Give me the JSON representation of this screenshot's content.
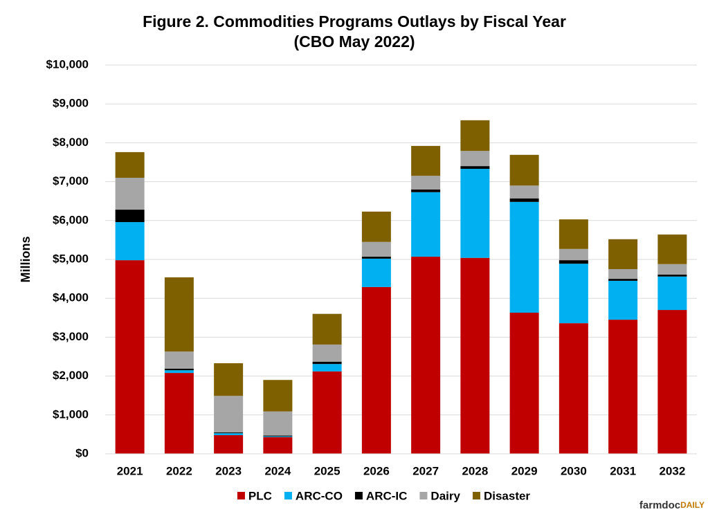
{
  "chart_data": {
    "type": "stacked_bar",
    "title": "Figure 2. Commodities Programs Outlays by Fiscal Year",
    "subtitle": "(CBO May 2022)",
    "y_label": "Millions",
    "categories": [
      "2021",
      "2022",
      "2023",
      "2024",
      "2025",
      "2026",
      "2027",
      "2028",
      "2029",
      "2030",
      "2031",
      "2032"
    ],
    "series": [
      {
        "name": "PLC",
        "color": "#c00000",
        "values": [
          4980,
          2080,
          480,
          430,
          2120,
          4290,
          5070,
          5040,
          3630,
          3360,
          3450,
          3700
        ]
      },
      {
        "name": "ARC-CO",
        "color": "#00b0f0",
        "values": [
          980,
          70,
          50,
          20,
          190,
          730,
          1660,
          2290,
          2850,
          1530,
          1000,
          860
        ]
      },
      {
        "name": "ARC-IC",
        "color": "#000000",
        "values": [
          320,
          40,
          20,
          20,
          60,
          50,
          70,
          70,
          90,
          90,
          50,
          50
        ]
      },
      {
        "name": "Dairy",
        "color": "#a6a6a6",
        "values": [
          820,
          440,
          940,
          620,
          440,
          380,
          350,
          390,
          330,
          290,
          250,
          270
        ]
      },
      {
        "name": "Disaster",
        "color": "#7f6000",
        "values": [
          660,
          1910,
          840,
          810,
          790,
          780,
          770,
          790,
          790,
          760,
          770,
          760
        ]
      }
    ],
    "ylim": [
      0,
      10000
    ],
    "yticks": [
      {
        "value": 0,
        "label": "$0"
      },
      {
        "value": 1000,
        "label": "$1,000"
      },
      {
        "value": 2000,
        "label": "$2,000"
      },
      {
        "value": 3000,
        "label": "$3,000"
      },
      {
        "value": 4000,
        "label": "$4,000"
      },
      {
        "value": 5000,
        "label": "$5,000"
      },
      {
        "value": 6000,
        "label": "$6,000"
      },
      {
        "value": 7000,
        "label": "$7,000"
      },
      {
        "value": 8000,
        "label": "$8,000"
      },
      {
        "value": 9000,
        "label": "$9,000"
      },
      {
        "value": 10000,
        "label": "$10,000"
      }
    ],
    "grid": true,
    "legend": "bottom",
    "logo": [
      "farmdoc",
      "DAILY"
    ]
  }
}
